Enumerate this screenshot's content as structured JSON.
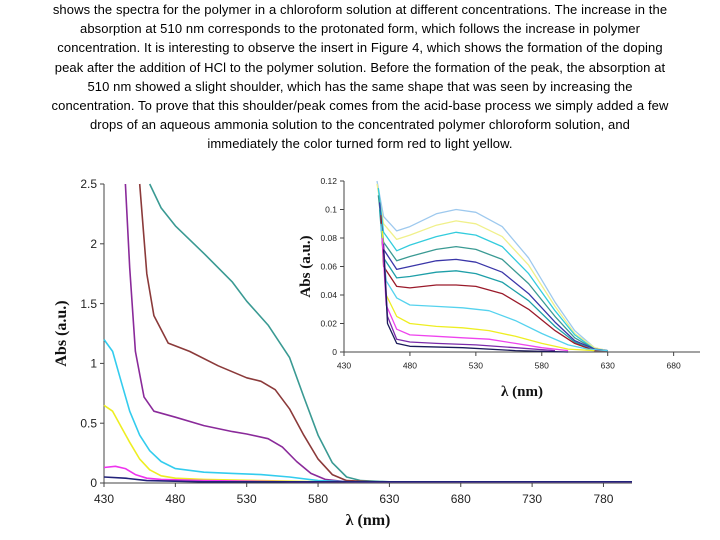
{
  "paragraph": [
    "shows the spectra for the polymer in a chloroform solution at different concentrations. The increase in the",
    "absorption at 510 nm corresponds to the protonated form, which follows the increase in polymer",
    "concentration. It is interesting to observe the insert in Figure 4, which shows the formation of the doping",
    "peak after the addition of HCl to the polymer solution. Before the formation of the peak, the absorption at",
    "510 nm showed a slight shoulder, which has the same shape that was seen by increasing the",
    "concentration. To prove that this shoulder/peak comes from the acid-base process we simply added a few",
    "drops of an aqueous ammonia solution to the concentrated polymer chloroform solution, and",
    "immediately the color turned form red to light yellow."
  ],
  "chart_data": [
    {
      "type": "line",
      "name": "main",
      "xlabel": "λ (nm)",
      "ylabel": "Abs (a.u.)",
      "xlim": [
        430,
        800
      ],
      "ylim": [
        0,
        2.5
      ],
      "xticks": [
        "430",
        "480",
        "530",
        "580",
        "630",
        "680",
        "730",
        "780"
      ],
      "yticks": [
        "0",
        "0.5",
        "1",
        "1.5",
        "2",
        "2.5"
      ],
      "series": [
        {
          "name": "teal",
          "color": "#3a9a93",
          "points": [
            [
              462,
              2.5
            ],
            [
              470,
              2.3
            ],
            [
              480,
              2.15
            ],
            [
              500,
              1.92
            ],
            [
              520,
              1.68
            ],
            [
              530,
              1.52
            ],
            [
              545,
              1.32
            ],
            [
              560,
              1.05
            ],
            [
              570,
              0.72
            ],
            [
              580,
              0.4
            ],
            [
              590,
              0.17
            ],
            [
              600,
              0.05
            ],
            [
              610,
              0.02
            ],
            [
              630,
              0.01
            ],
            [
              800,
              0.01
            ]
          ]
        },
        {
          "name": "brown",
          "color": "#8b3a3a",
          "points": [
            [
              455,
              2.5
            ],
            [
              460,
              1.75
            ],
            [
              465,
              1.4
            ],
            [
              475,
              1.17
            ],
            [
              490,
              1.1
            ],
            [
              510,
              0.98
            ],
            [
              530,
              0.88
            ],
            [
              540,
              0.85
            ],
            [
              550,
              0.78
            ],
            [
              560,
              0.62
            ],
            [
              570,
              0.4
            ],
            [
              580,
              0.2
            ],
            [
              590,
              0.07
            ],
            [
              600,
              0.02
            ],
            [
              620,
              0.01
            ],
            [
              800,
              0.01
            ]
          ]
        },
        {
          "name": "purple",
          "color": "#8a2a9a",
          "points": [
            [
              445,
              2.5
            ],
            [
              448,
              1.8
            ],
            [
              452,
              1.1
            ],
            [
              458,
              0.72
            ],
            [
              465,
              0.6
            ],
            [
              480,
              0.55
            ],
            [
              500,
              0.48
            ],
            [
              520,
              0.43
            ],
            [
              530,
              0.41
            ],
            [
              545,
              0.37
            ],
            [
              555,
              0.3
            ],
            [
              565,
              0.18
            ],
            [
              575,
              0.08
            ],
            [
              585,
              0.03
            ],
            [
              600,
              0.01
            ],
            [
              800,
              0.01
            ]
          ]
        },
        {
          "name": "cyan",
          "color": "#33ccee",
          "points": [
            [
              430,
              1.2
            ],
            [
              436,
              1.1
            ],
            [
              442,
              0.85
            ],
            [
              448,
              0.6
            ],
            [
              455,
              0.4
            ],
            [
              462,
              0.27
            ],
            [
              470,
              0.18
            ],
            [
              480,
              0.12
            ],
            [
              500,
              0.09
            ],
            [
              520,
              0.08
            ],
            [
              540,
              0.07
            ],
            [
              560,
              0.05
            ],
            [
              580,
              0.02
            ],
            [
              600,
              0.01
            ],
            [
              800,
              0.01
            ]
          ]
        },
        {
          "name": "yellow",
          "color": "#eeee22",
          "points": [
            [
              430,
              0.65
            ],
            [
              436,
              0.6
            ],
            [
              442,
              0.47
            ],
            [
              448,
              0.34
            ],
            [
              455,
              0.2
            ],
            [
              462,
              0.11
            ],
            [
              470,
              0.06
            ],
            [
              480,
              0.04
            ],
            [
              500,
              0.03
            ],
            [
              540,
              0.02
            ],
            [
              580,
              0.01
            ],
            [
              800,
              0.01
            ]
          ]
        },
        {
          "name": "magenta",
          "color": "#ee33ee",
          "points": [
            [
              430,
              0.13
            ],
            [
              438,
              0.14
            ],
            [
              445,
              0.12
            ],
            [
              452,
              0.07
            ],
            [
              460,
              0.04
            ],
            [
              470,
              0.03
            ],
            [
              500,
              0.02
            ],
            [
              560,
              0.01
            ],
            [
              800,
              0.01
            ]
          ]
        },
        {
          "name": "navy",
          "color": "#22227a",
          "points": [
            [
              430,
              0.05
            ],
            [
              445,
              0.04
            ],
            [
              460,
              0.02
            ],
            [
              500,
              0.01
            ],
            [
              800,
              0.01
            ]
          ]
        }
      ]
    },
    {
      "type": "line",
      "name": "inset",
      "xlabel": "λ (nm)",
      "ylabel": "Abs (a.u.)",
      "xlim": [
        430,
        700
      ],
      "ylim": [
        0,
        0.12
      ],
      "xticks": [
        "430",
        "480",
        "530",
        "580",
        "630",
        "680"
      ],
      "yticks": [
        "0",
        "0.02",
        "0.04",
        "0.06",
        "0.08",
        "0.1",
        "0.12"
      ],
      "series": [
        {
          "name": "s1",
          "color": "#9ec9ee",
          "points": [
            [
              455,
              0.12
            ],
            [
              460,
              0.095
            ],
            [
              470,
              0.085
            ],
            [
              480,
              0.088
            ],
            [
              500,
              0.097
            ],
            [
              515,
              0.1
            ],
            [
              530,
              0.098
            ],
            [
              550,
              0.088
            ],
            [
              570,
              0.066
            ],
            [
              590,
              0.035
            ],
            [
              605,
              0.015
            ],
            [
              620,
              0.003
            ],
            [
              630,
              0.001
            ]
          ]
        },
        {
          "name": "s2",
          "color": "#f0f08a",
          "points": [
            [
              455,
              0.118
            ],
            [
              460,
              0.09
            ],
            [
              470,
              0.079
            ],
            [
              480,
              0.082
            ],
            [
              500,
              0.089
            ],
            [
              515,
              0.092
            ],
            [
              530,
              0.09
            ],
            [
              550,
              0.081
            ],
            [
              570,
              0.061
            ],
            [
              590,
              0.032
            ],
            [
              605,
              0.013
            ],
            [
              620,
              0.003
            ],
            [
              630,
              0.001
            ]
          ]
        },
        {
          "name": "s3",
          "color": "#33ccdd",
          "points": [
            [
              456,
              0.115
            ],
            [
              460,
              0.084
            ],
            [
              470,
              0.071
            ],
            [
              480,
              0.075
            ],
            [
              500,
              0.081
            ],
            [
              515,
              0.084
            ],
            [
              530,
              0.082
            ],
            [
              550,
              0.074
            ],
            [
              570,
              0.055
            ],
            [
              590,
              0.029
            ],
            [
              605,
              0.012
            ],
            [
              620,
              0.002
            ],
            [
              630,
              0.001
            ]
          ]
        },
        {
          "name": "s4",
          "color": "#3a9a93",
          "points": [
            [
              456,
              0.11
            ],
            [
              460,
              0.077
            ],
            [
              470,
              0.064
            ],
            [
              480,
              0.067
            ],
            [
              500,
              0.072
            ],
            [
              515,
              0.074
            ],
            [
              530,
              0.072
            ],
            [
              550,
              0.065
            ],
            [
              570,
              0.048
            ],
            [
              590,
              0.025
            ],
            [
              605,
              0.01
            ],
            [
              620,
              0.002
            ],
            [
              630,
              0.001
            ]
          ]
        },
        {
          "name": "s5",
          "color": "#3a36a8",
          "points": [
            [
              457,
              0.105
            ],
            [
              460,
              0.072
            ],
            [
              470,
              0.058
            ],
            [
              480,
              0.06
            ],
            [
              500,
              0.064
            ],
            [
              515,
              0.065
            ],
            [
              530,
              0.063
            ],
            [
              550,
              0.056
            ],
            [
              570,
              0.041
            ],
            [
              590,
              0.021
            ],
            [
              605,
              0.008
            ],
            [
              620,
              0.002
            ],
            [
              630,
              0.001
            ]
          ]
        },
        {
          "name": "s6",
          "color": "#1e9fa8",
          "points": [
            [
              457,
              0.1
            ],
            [
              460,
              0.066
            ],
            [
              470,
              0.052
            ],
            [
              480,
              0.053
            ],
            [
              500,
              0.056
            ],
            [
              515,
              0.057
            ],
            [
              530,
              0.055
            ],
            [
              550,
              0.049
            ],
            [
              570,
              0.036
            ],
            [
              590,
              0.018
            ],
            [
              605,
              0.007
            ],
            [
              620,
              0.001
            ],
            [
              630,
              0.001
            ]
          ]
        },
        {
          "name": "s7",
          "color": "#9a1a2a",
          "points": [
            [
              458,
              0.096
            ],
            [
              460,
              0.06
            ],
            [
              470,
              0.046
            ],
            [
              480,
              0.045
            ],
            [
              500,
              0.047
            ],
            [
              515,
              0.047
            ],
            [
              530,
              0.046
            ],
            [
              550,
              0.041
            ],
            [
              570,
              0.03
            ],
            [
              590,
              0.015
            ],
            [
              605,
              0.006
            ],
            [
              620,
              0.001
            ],
            [
              630,
              0.001
            ]
          ]
        },
        {
          "name": "s8",
          "color": "#55d2ee",
          "points": [
            [
              458,
              0.09
            ],
            [
              462,
              0.05
            ],
            [
              470,
              0.038
            ],
            [
              480,
              0.033
            ],
            [
              500,
              0.032
            ],
            [
              520,
              0.031
            ],
            [
              540,
              0.029
            ],
            [
              560,
              0.022
            ],
            [
              580,
              0.013
            ],
            [
              600,
              0.005
            ],
            [
              615,
              0.002
            ],
            [
              630,
              0.001
            ]
          ]
        },
        {
          "name": "s9",
          "color": "#eeee22",
          "points": [
            [
              459,
              0.085
            ],
            [
              462,
              0.04
            ],
            [
              470,
              0.025
            ],
            [
              480,
              0.02
            ],
            [
              500,
              0.018
            ],
            [
              520,
              0.017
            ],
            [
              540,
              0.015
            ],
            [
              560,
              0.011
            ],
            [
              580,
              0.006
            ],
            [
              600,
              0.002
            ],
            [
              620,
              0.001
            ]
          ]
        },
        {
          "name": "s10",
          "color": "#ee44ee",
          "points": [
            [
              459,
              0.08
            ],
            [
              462,
              0.033
            ],
            [
              470,
              0.016
            ],
            [
              480,
              0.012
            ],
            [
              500,
              0.011
            ],
            [
              520,
              0.01
            ],
            [
              540,
              0.009
            ],
            [
              560,
              0.006
            ],
            [
              580,
              0.003
            ],
            [
              600,
              0.001
            ]
          ]
        },
        {
          "name": "s11",
          "color": "#7a2aaa",
          "points": [
            [
              460,
              0.076
            ],
            [
              463,
              0.025
            ],
            [
              470,
              0.009
            ],
            [
              480,
              0.007
            ],
            [
              500,
              0.006
            ],
            [
              530,
              0.005
            ],
            [
              560,
              0.003
            ],
            [
              590,
              0.001
            ]
          ]
        },
        {
          "name": "s12",
          "color": "#1a1a5a",
          "points": [
            [
              460,
              0.072
            ],
            [
              463,
              0.02
            ],
            [
              470,
              0.006
            ],
            [
              480,
              0.004
            ],
            [
              520,
              0.003
            ],
            [
              560,
              0.001
            ],
            [
              600,
              0.0
            ]
          ]
        }
      ]
    }
  ]
}
